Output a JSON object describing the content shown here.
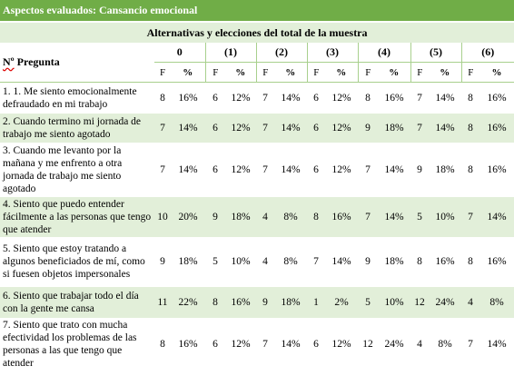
{
  "title": "Aspectos evaluados: Cansancio emocional",
  "alternatives_label": "Alternativas y elecciones del total de la muestra",
  "question_header_prefix": "Nº",
  "question_header": " Pregunta",
  "options": [
    "0",
    "(1)",
    "(2)",
    "(3)",
    "(4)",
    "(5)",
    "(6)"
  ],
  "sub_f": "F",
  "sub_pct": "%",
  "rows": [
    {
      "q": "1. 1. Me siento emocionalmente defraudado en mi trabajo",
      "v": [
        "8",
        "16%",
        "6",
        "12%",
        "7",
        "14%",
        "6",
        "12%",
        "8",
        "16%",
        "7",
        "14%",
        "8",
        "16%"
      ]
    },
    {
      "q": "2. Cuando termino mi jornada de trabajo me siento agotado",
      "v": [
        "7",
        "14%",
        "6",
        "12%",
        "7",
        "14%",
        "6",
        "12%",
        "9",
        "18%",
        "7",
        "14%",
        "8",
        "16%"
      ]
    },
    {
      "q": "3. Cuando me levanto por la mañana y me enfrento a otra jornada de trabajo me siento agotado",
      "v": [
        "7",
        "14%",
        "6",
        "12%",
        "7",
        "14%",
        "6",
        "12%",
        "7",
        "14%",
        "9",
        "18%",
        "8",
        "16%"
      ]
    },
    {
      "q": "4. Siento que puedo entender fácilmente a las personas que tengo que atender",
      "v": [
        "10",
        "20%",
        "9",
        "18%",
        "4",
        "8%",
        "8",
        "16%",
        "7",
        "14%",
        "5",
        "10%",
        "7",
        "14%"
      ]
    },
    {
      "q": "5. Siento que estoy tratando a algunos beneficiados de mí, como si fuesen objetos impersonales",
      "v": [
        "9",
        "18%",
        "5",
        "10%",
        "4",
        "8%",
        "7",
        "14%",
        "9",
        "18%",
        "8",
        "16%",
        "8",
        "16%"
      ]
    },
    {
      "q": "6. Siento que trabajar todo el día con la gente me cansa",
      "v": [
        "11",
        "22%",
        "8",
        "16%",
        "9",
        "18%",
        "1",
        "2%",
        "5",
        "10%",
        "12",
        "24%",
        "4",
        "8%"
      ]
    },
    {
      "q": "7. Siento que trato con mucha efectividad los problemas de las personas a las que tengo que atender",
      "v": [
        "8",
        "16%",
        "6",
        "12%",
        "7",
        "14%",
        "6",
        "12%",
        "12",
        "24%",
        "4",
        "8%",
        "7",
        "14%"
      ]
    }
  ]
}
